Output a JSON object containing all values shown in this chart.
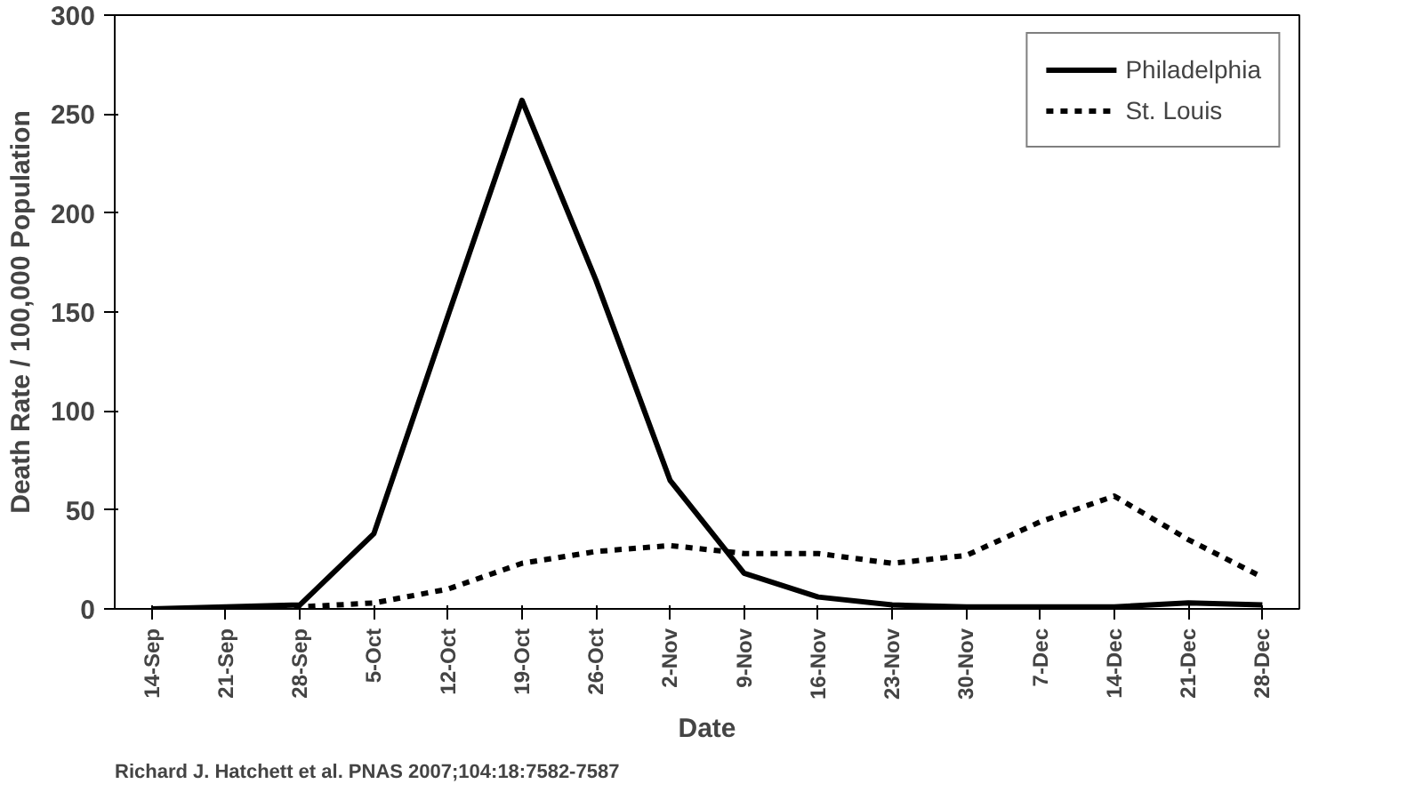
{
  "chart_data": {
    "type": "line",
    "xlabel": "Date",
    "ylabel": "Death Rate / 100,000 Population",
    "categories": [
      "14-Sep",
      "21-Sep",
      "28-Sep",
      "5-Oct",
      "12-Oct",
      "19-Oct",
      "26-Oct",
      "2-Nov",
      "9-Nov",
      "16-Nov",
      "23-Nov",
      "30-Nov",
      "7-Dec",
      "14-Dec",
      "21-Dec",
      "28-Dec"
    ],
    "series": [
      {
        "name": "Philadelphia",
        "color": "#000000",
        "line_style": "solid",
        "values": [
          0,
          1,
          2,
          38,
          148,
          257,
          166,
          65,
          18,
          6,
          2,
          1,
          1,
          1,
          3,
          2
        ]
      },
      {
        "name": "St. Louis",
        "color": "#000000",
        "line_style": "dashed",
        "values": [
          0,
          0,
          1,
          3,
          10,
          23,
          29,
          32,
          28,
          28,
          23,
          27,
          44,
          57,
          35,
          16
        ]
      }
    ],
    "ylim": [
      0,
      300
    ],
    "yticks": [
      0,
      50,
      100,
      150,
      200,
      250,
      300
    ],
    "grid": false,
    "legend": "top right",
    "marker": "none",
    "annotations": [
      "Richard J. Hatchett et al. PNAS 2007;104:18:7582-7587"
    ]
  }
}
